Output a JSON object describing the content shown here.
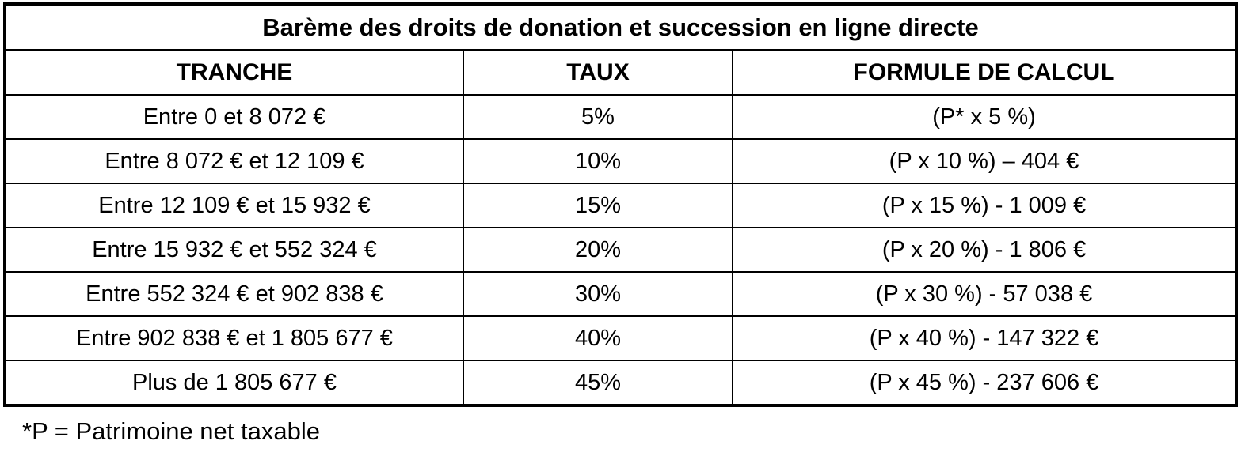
{
  "colors": {
    "background": "#ffffff",
    "border": "#000000",
    "text": "#000000"
  },
  "table": {
    "title": "Barème des droits de donation et succession en ligne directe",
    "headers": [
      "TRANCHE",
      "TAUX",
      "FORMULE DE CALCUL"
    ],
    "rows": [
      {
        "tranche": "Entre 0 et 8 072 €",
        "taux": "5%",
        "formule": "(P* x 5 %)"
      },
      {
        "tranche": "Entre 8 072 € et 12 109 €",
        "taux": "10%",
        "formule": "(P x 10 %) – 404 €"
      },
      {
        "tranche": "Entre 12 109 € et 15 932 €",
        "taux": "15%",
        "formule": "(P x 15 %) - 1 009 €"
      },
      {
        "tranche": "Entre 15 932 € et 552 324 €",
        "taux": "20%",
        "formule": "(P x 20 %) - 1 806 €"
      },
      {
        "tranche": "Entre 552 324 € et 902 838 €",
        "taux": "30%",
        "formule": "(P x 30 %) - 57 038 €"
      },
      {
        "tranche": "Entre 902 838 € et 1 805 677 €",
        "taux": "40%",
        "formule": "(P x 40 %) - 147 322 €"
      },
      {
        "tranche": "Plus de 1 805 677 €",
        "taux": "45%",
        "formule": "(P x 45 %) - 237 606 €"
      }
    ],
    "footnote": "*P = Patrimoine net taxable"
  }
}
